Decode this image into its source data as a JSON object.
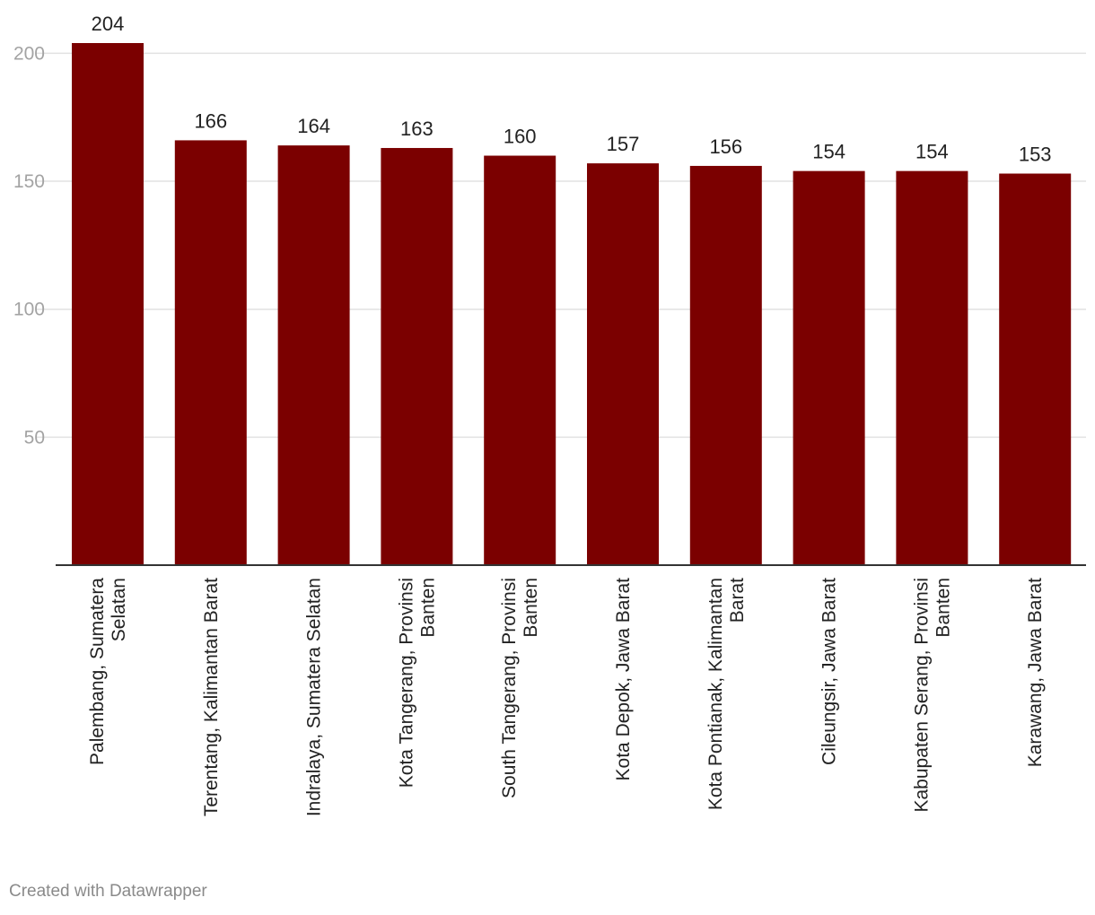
{
  "chart_data": {
    "type": "bar",
    "categories": [
      [
        "Palembang, Sumatera",
        "Selatan"
      ],
      [
        "Terentang, Kalimantan Barat"
      ],
      [
        "Indralaya, Sumatera Selatan"
      ],
      [
        "Kota Tangerang, Provinsi",
        "Banten"
      ],
      [
        "South Tangerang, Provinsi",
        "Banten"
      ],
      [
        "Kota Depok, Jawa Barat"
      ],
      [
        "Kota Pontianak, Kalimantan",
        "Barat"
      ],
      [
        "Cileungsir, Jawa Barat"
      ],
      [
        "Kabupaten Serang, Provinsi",
        "Banten"
      ],
      [
        "Karawang, Jawa Barat"
      ]
    ],
    "values": [
      204,
      166,
      164,
      163,
      160,
      157,
      156,
      154,
      154,
      153
    ],
    "yticks": [
      50,
      100,
      150,
      200
    ],
    "ylim": [
      0,
      204
    ],
    "grid": true,
    "colors": {
      "bar": "#7b0000",
      "grid": "#e2e2e2",
      "axis": "#333333",
      "tick_label": "#a3a3a3",
      "text": "#222222"
    }
  },
  "footer": {
    "credit": "Created with Datawrapper"
  }
}
